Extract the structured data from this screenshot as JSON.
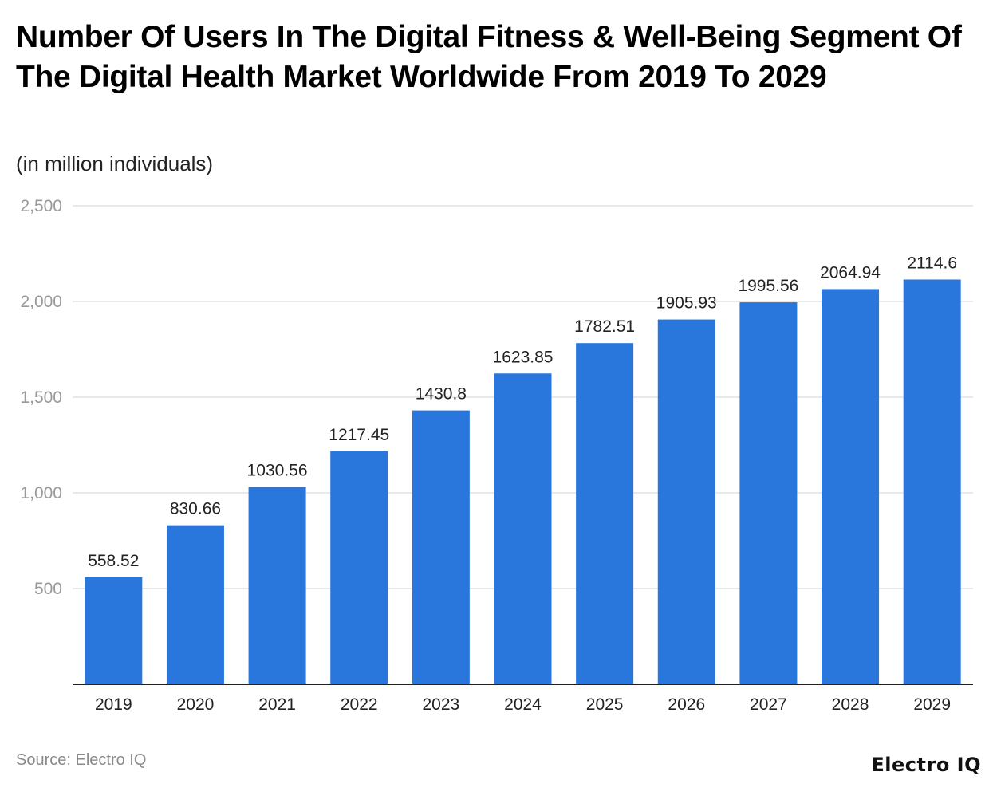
{
  "chart_data": {
    "type": "bar",
    "title": "Number Of Users In The Digital Fitness & Well-Being Segment Of The Digital Health Market Worldwide From 2019 To 2029",
    "subtitle": "(in million individuals)",
    "categories": [
      "2019",
      "2020",
      "2021",
      "2022",
      "2023",
      "2024",
      "2025",
      "2026",
      "2027",
      "2028",
      "2029"
    ],
    "values": [
      558.52,
      830.66,
      1030.56,
      1217.45,
      1430.8,
      1623.85,
      1782.51,
      1905.93,
      1995.56,
      2064.94,
      2114.6
    ],
    "data_labels": [
      "558.52",
      "830.66",
      "1030.56",
      "1217.45",
      "1430.8",
      "1623.85",
      "1782.51",
      "1905.93",
      "1995.56",
      "2064.94",
      "2114.6"
    ],
    "xlabel": "",
    "ylabel": "",
    "ylim": [
      0,
      2500
    ],
    "yticks": [
      500,
      1000,
      1500,
      2000,
      2500
    ],
    "ytick_labels": [
      "500",
      "1,000",
      "1,500",
      "2,000",
      "2,500"
    ],
    "grid": true,
    "bar_color": "#2976DD",
    "source": "Source: Electro IQ",
    "logo": "Electro IQ"
  }
}
